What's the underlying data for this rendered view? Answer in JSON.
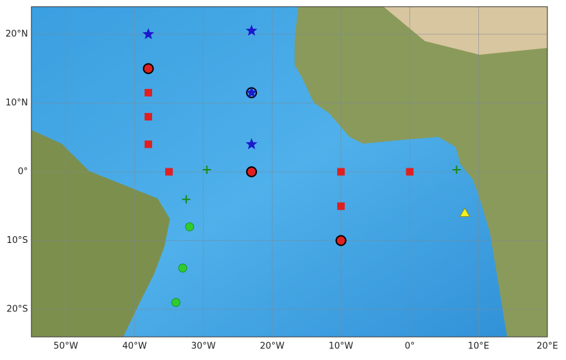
{
  "chart_data": {
    "type": "scatter",
    "xlim": [
      -55,
      20
    ],
    "ylim": [
      -24,
      24
    ],
    "xticks": [
      {
        "value": -50,
        "label": "50°W"
      },
      {
        "value": -40,
        "label": "40°W"
      },
      {
        "value": -30,
        "label": "30°W"
      },
      {
        "value": -20,
        "label": "20°W"
      },
      {
        "value": -10,
        "label": "10°W"
      },
      {
        "value": 0,
        "label": "0°"
      },
      {
        "value": 10,
        "label": "10°E"
      },
      {
        "value": 20,
        "label": "20°E"
      }
    ],
    "yticks": [
      {
        "value": -20,
        "label": "20°S"
      },
      {
        "value": -10,
        "label": "10°S"
      },
      {
        "value": 0,
        "label": "0°"
      },
      {
        "value": 10,
        "label": "10°N"
      },
      {
        "value": 20,
        "label": "20°N"
      }
    ],
    "grid": true,
    "series": [
      {
        "marker": "circle",
        "color": "#e02020",
        "x": [
          -38,
          -23,
          -10
        ],
        "values": [
          15,
          0,
          -10
        ]
      },
      {
        "marker": "ring",
        "color": "none",
        "x": [
          -23
        ],
        "values": [
          11.5
        ]
      },
      {
        "marker": "star",
        "color": "#1a1acc",
        "x": [
          -38,
          -23,
          -23,
          -23
        ],
        "values": [
          20,
          20.5,
          11.5,
          4
        ]
      },
      {
        "marker": "square",
        "color": "#e02020",
        "x": [
          -38,
          -38,
          -38,
          -35,
          -10,
          -10,
          0
        ],
        "values": [
          11.5,
          8,
          4,
          0,
          0,
          -5,
          0
        ]
      },
      {
        "marker": "cross",
        "color": "#1a8a1a",
        "x": [
          -29.5,
          -32.5,
          6.8
        ],
        "values": [
          0.3,
          -4,
          0.3
        ]
      },
      {
        "marker": "dot",
        "color": "#2ecc2e",
        "x": [
          -32,
          -33,
          -34
        ],
        "values": [
          -8,
          -14,
          -19
        ]
      },
      {
        "marker": "triangle",
        "color": "#f5f020",
        "x": [
          8
        ],
        "values": [
          -6
        ]
      }
    ]
  }
}
